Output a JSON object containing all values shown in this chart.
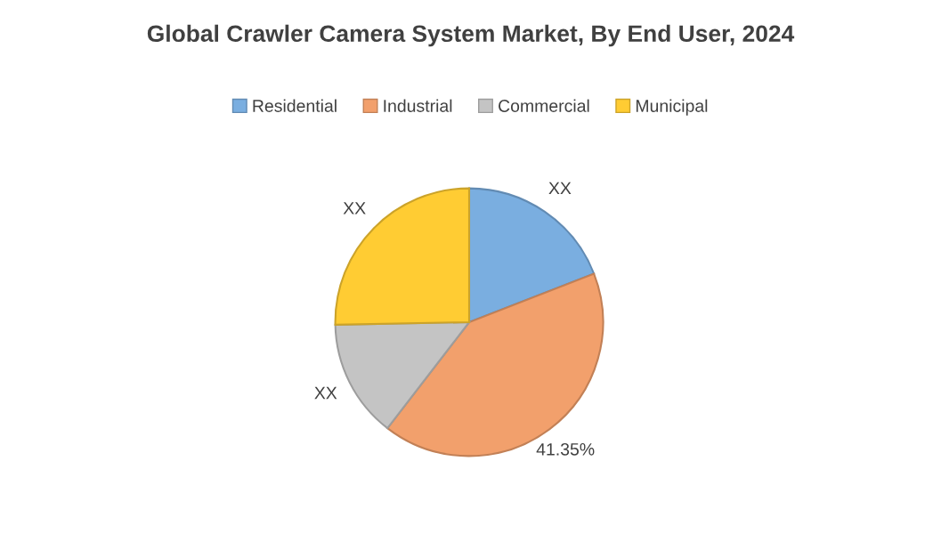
{
  "chart_data": {
    "type": "pie",
    "title": "Global Crawler Camera System Market, By End User, 2024",
    "categories": [
      "Residential",
      "Industrial",
      "Commercial",
      "Municipal"
    ],
    "values": [
      19.1,
      41.35,
      14.25,
      25.3
    ],
    "colors": [
      "#7aaee0",
      "#f2a06c",
      "#c4c4c4",
      "#ffcc33"
    ],
    "value_labels": [
      "XX",
      "41.35%",
      "XX",
      "XX"
    ],
    "legend": "top"
  }
}
